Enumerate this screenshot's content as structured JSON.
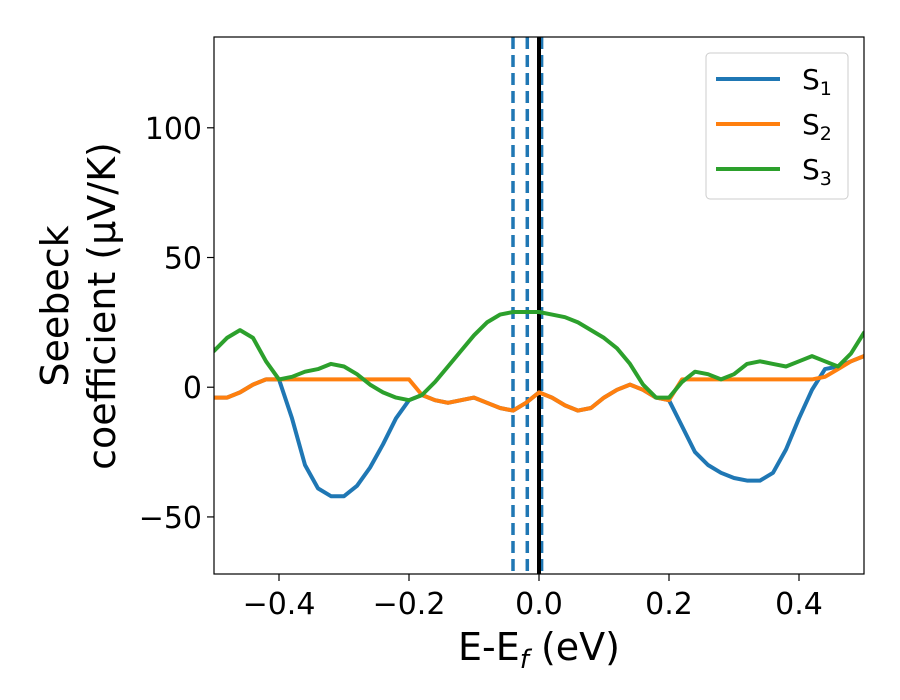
{
  "chart_data": {
    "type": "line",
    "title": "",
    "xlabel_main": "E-E",
    "xlabel_sub": "f",
    "xlabel_unit": " (eV)",
    "ylabel_line1": "Seebeck",
    "ylabel_line2": "coefficient  (μV/K)",
    "xlim": [
      -0.5,
      0.5
    ],
    "ylim": [
      -72,
      135
    ],
    "xticks": [
      -0.4,
      -0.2,
      0.0,
      0.2,
      0.4
    ],
    "xtick_labels": [
      "−0.4",
      "−0.2",
      "0.0",
      "0.2",
      "0.4"
    ],
    "yticks": [
      -50,
      0,
      50,
      100
    ],
    "ytick_labels": [
      "−50",
      "0",
      "50",
      "100"
    ],
    "grid": false,
    "legend_position": "top-right",
    "legend": [
      {
        "main": "S",
        "sub": "1",
        "color": "#1f77b4"
      },
      {
        "main": "S",
        "sub": "2",
        "color": "#ff7f0e"
      },
      {
        "main": "S",
        "sub": "3",
        "color": "#2ca02c"
      }
    ],
    "vlines": [
      {
        "x": -0.04,
        "color": "#1f77b4",
        "style": "dashed"
      },
      {
        "x": -0.018,
        "color": "#1f77b4",
        "style": "dashed"
      },
      {
        "x": 0.004,
        "color": "#1f77b4",
        "style": "dashed"
      },
      {
        "x": 0.0,
        "color": "#000000",
        "style": "solid"
      }
    ],
    "series": [
      {
        "color": "#1f77b4",
        "x": [
          -0.5,
          -0.48,
          -0.46,
          -0.44,
          -0.42,
          -0.4,
          -0.38,
          -0.36,
          -0.34,
          -0.32,
          -0.3,
          -0.28,
          -0.26,
          -0.24,
          -0.22,
          -0.2,
          -0.18,
          -0.16,
          -0.14,
          -0.12,
          -0.1,
          -0.08,
          -0.06,
          -0.04,
          -0.02,
          0.0,
          0.02,
          0.04,
          0.06,
          0.08,
          0.1,
          0.12,
          0.14,
          0.16,
          0.18,
          0.2,
          0.22,
          0.24,
          0.26,
          0.28,
          0.3,
          0.32,
          0.34,
          0.36,
          0.38,
          0.4,
          0.42,
          0.44,
          0.46,
          0.48,
          0.5
        ],
        "y": [
          -4,
          -4,
          -2,
          1,
          3,
          3,
          -12,
          -30,
          -39,
          -42,
          -42,
          -38,
          -31,
          -22,
          -12,
          -5,
          -3,
          -5,
          -6,
          -5,
          -4,
          -6,
          -8,
          -9,
          -6,
          -2,
          -4,
          -7,
          -9,
          -8,
          -4,
          -1,
          1,
          -1,
          -4,
          -5,
          -15,
          -25,
          -30,
          -33,
          -35,
          -36,
          -36,
          -33,
          -24,
          -12,
          -1,
          7,
          8,
          10,
          12
        ]
      },
      {
        "color": "#ff7f0e",
        "x": [
          -0.5,
          -0.48,
          -0.46,
          -0.44,
          -0.42,
          -0.4,
          -0.38,
          -0.36,
          -0.34,
          -0.32,
          -0.3,
          -0.28,
          -0.26,
          -0.24,
          -0.22,
          -0.2,
          -0.18,
          -0.16,
          -0.14,
          -0.12,
          -0.1,
          -0.08,
          -0.06,
          -0.04,
          -0.02,
          0.0,
          0.02,
          0.04,
          0.06,
          0.08,
          0.1,
          0.12,
          0.14,
          0.16,
          0.18,
          0.2,
          0.22,
          0.24,
          0.26,
          0.28,
          0.3,
          0.32,
          0.34,
          0.36,
          0.38,
          0.4,
          0.42,
          0.44,
          0.46,
          0.48,
          0.5
        ],
        "y": [
          -4,
          -4,
          -2,
          1,
          3,
          3,
          3,
          3,
          3,
          3,
          3,
          3,
          3,
          3,
          3,
          3,
          -3,
          -5,
          -6,
          -5,
          -4,
          -6,
          -8,
          -9,
          -6,
          -2,
          -4,
          -7,
          -9,
          -8,
          -4,
          -1,
          1,
          -1,
          -4,
          -5,
          3,
          3,
          3,
          3,
          3,
          3,
          3,
          3,
          3,
          3,
          3,
          4,
          7,
          10,
          12
        ]
      },
      {
        "color": "#2ca02c",
        "x": [
          -0.5,
          -0.48,
          -0.46,
          -0.44,
          -0.42,
          -0.4,
          -0.38,
          -0.36,
          -0.34,
          -0.32,
          -0.3,
          -0.28,
          -0.26,
          -0.24,
          -0.22,
          -0.2,
          -0.18,
          -0.16,
          -0.14,
          -0.12,
          -0.1,
          -0.08,
          -0.06,
          -0.04,
          -0.02,
          0.0,
          0.02,
          0.04,
          0.06,
          0.08,
          0.1,
          0.12,
          0.14,
          0.16,
          0.18,
          0.2,
          0.22,
          0.24,
          0.26,
          0.28,
          0.3,
          0.32,
          0.34,
          0.36,
          0.38,
          0.4,
          0.42,
          0.44,
          0.46,
          0.48,
          0.5
        ],
        "y": [
          14,
          19,
          22,
          19,
          10,
          3,
          4,
          6,
          7,
          9,
          8,
          5,
          1,
          -2,
          -4,
          -5,
          -3,
          2,
          8,
          14,
          20,
          25,
          28,
          29,
          29,
          29,
          28,
          27,
          25,
          22,
          19,
          15,
          9,
          1,
          -4,
          -4,
          2,
          6,
          5,
          3,
          5,
          9,
          10,
          9,
          8,
          10,
          12,
          10,
          8,
          13,
          21
        ]
      }
    ]
  }
}
